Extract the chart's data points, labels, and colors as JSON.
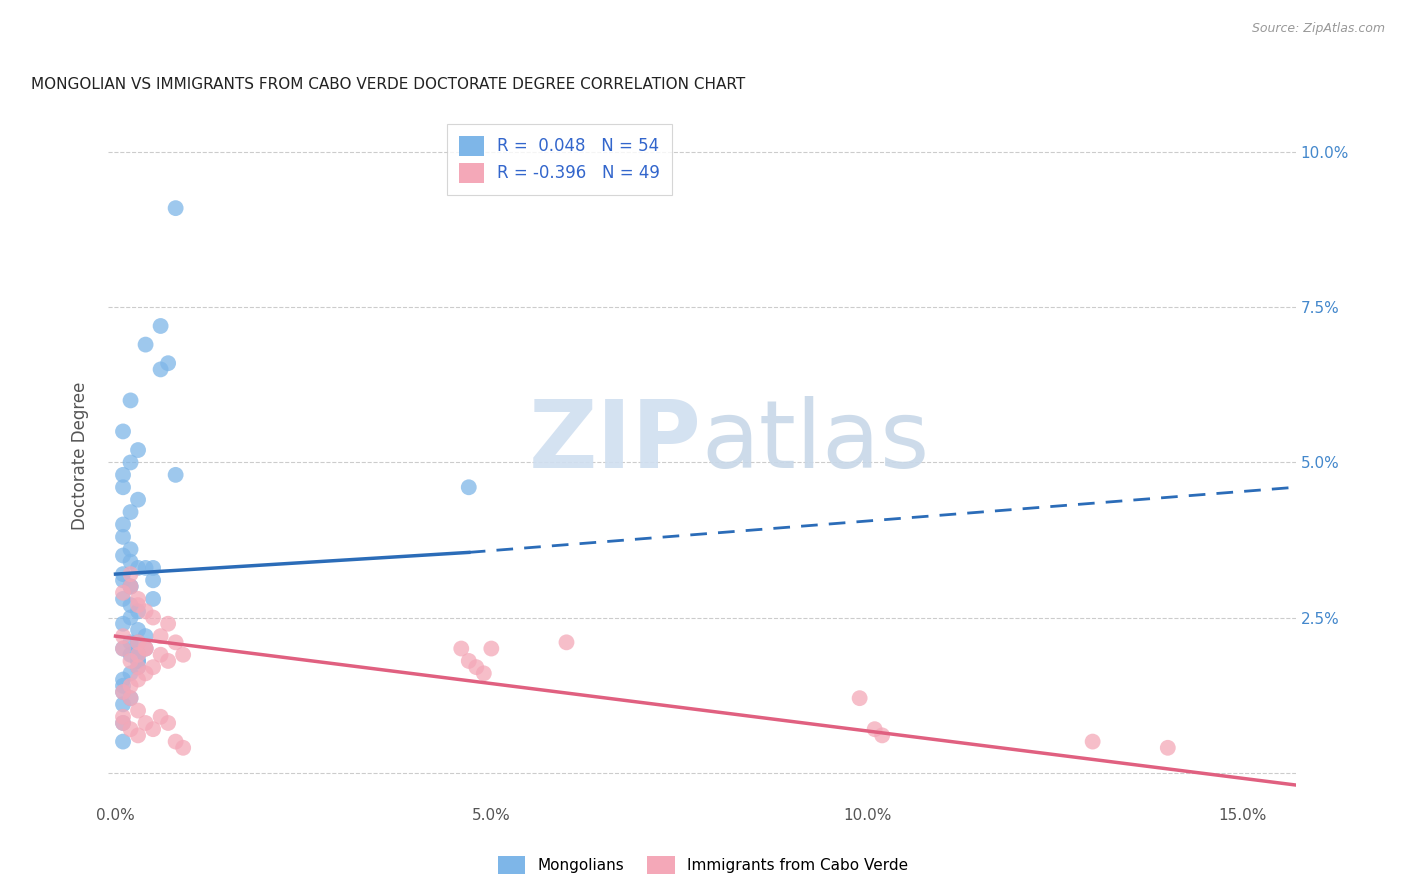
{
  "title": "MONGOLIAN VS IMMIGRANTS FROM CABO VERDE DOCTORATE DEGREE CORRELATION CHART",
  "source": "Source: ZipAtlas.com",
  "ylabel": "Doctorate Degree",
  "xmin": -0.001,
  "xmax": 0.157,
  "ymin": -0.005,
  "ymax": 0.107,
  "mongolian_R": 0.048,
  "mongolian_N": 54,
  "cabo_verde_R": -0.396,
  "cabo_verde_N": 49,
  "mongolian_color": "#7EB6E8",
  "cabo_verde_color": "#F4A8B8",
  "mongolian_line_color": "#2B6CB8",
  "cabo_verde_line_color": "#E06080",
  "watermark_zip": "ZIP",
  "watermark_atlas": "atlas",
  "xtick_vals": [
    0.0,
    0.05,
    0.1,
    0.15
  ],
  "xtick_labels": [
    "0.0%",
    "5.0%",
    "10.0%",
    "15.0%"
  ],
  "ytick_vals": [
    0.0,
    0.025,
    0.05,
    0.075,
    0.1
  ],
  "ytick_labels": [
    "",
    "2.5%",
    "5.0%",
    "7.5%",
    "10.0%"
  ],
  "mong_x": [
    0.001,
    0.008,
    0.006,
    0.001,
    0.001,
    0.003,
    0.002,
    0.001,
    0.004,
    0.002,
    0.001,
    0.002,
    0.001,
    0.003,
    0.002,
    0.004,
    0.005,
    0.002,
    0.003,
    0.001,
    0.002,
    0.002,
    0.001,
    0.003,
    0.004,
    0.006,
    0.007,
    0.008,
    0.002,
    0.003,
    0.003,
    0.004,
    0.005,
    0.001,
    0.002,
    0.003,
    0.047,
    0.005,
    0.003,
    0.003,
    0.001,
    0.001,
    0.002,
    0.001,
    0.001,
    0.003,
    0.002,
    0.001,
    0.001,
    0.002,
    0.001,
    0.002,
    0.003,
    0.001
  ],
  "mong_y": [
    0.035,
    0.091,
    0.072,
    0.048,
    0.046,
    0.044,
    0.042,
    0.04,
    0.069,
    0.06,
    0.055,
    0.05,
    0.038,
    0.052,
    0.034,
    0.033,
    0.031,
    0.03,
    0.033,
    0.028,
    0.027,
    0.025,
    0.024,
    0.023,
    0.022,
    0.065,
    0.066,
    0.048,
    0.019,
    0.018,
    0.021,
    0.02,
    0.033,
    0.031,
    0.021,
    0.019,
    0.046,
    0.028,
    0.019,
    0.018,
    0.015,
    0.013,
    0.012,
    0.011,
    0.008,
    0.017,
    0.016,
    0.005,
    0.032,
    0.03,
    0.02,
    0.036,
    0.026,
    0.014
  ],
  "cv_x": [
    0.001,
    0.002,
    0.003,
    0.004,
    0.005,
    0.002,
    0.003,
    0.001,
    0.001,
    0.002,
    0.003,
    0.004,
    0.006,
    0.007,
    0.008,
    0.009,
    0.003,
    0.002,
    0.001,
    0.004,
    0.005,
    0.003,
    0.006,
    0.007,
    0.002,
    0.003,
    0.001,
    0.001,
    0.002,
    0.003,
    0.004,
    0.005,
    0.008,
    0.009,
    0.004,
    0.003,
    0.006,
    0.007,
    0.046,
    0.047,
    0.048,
    0.049,
    0.05,
    0.06,
    0.099,
    0.101,
    0.102,
    0.13,
    0.14
  ],
  "cv_y": [
    0.022,
    0.032,
    0.028,
    0.026,
    0.025,
    0.03,
    0.027,
    0.029,
    0.02,
    0.018,
    0.017,
    0.016,
    0.022,
    0.024,
    0.021,
    0.019,
    0.015,
    0.014,
    0.013,
    0.02,
    0.017,
    0.021,
    0.019,
    0.018,
    0.012,
    0.01,
    0.009,
    0.008,
    0.007,
    0.006,
    0.008,
    0.007,
    0.005,
    0.004,
    0.02,
    0.019,
    0.009,
    0.008,
    0.02,
    0.018,
    0.017,
    0.016,
    0.02,
    0.021,
    0.012,
    0.007,
    0.006,
    0.005,
    0.004
  ],
  "mong_line_x0": 0.0,
  "mong_line_x_solid_end": 0.047,
  "mong_line_xmax": 0.157,
  "mong_line_y0": 0.032,
  "mong_line_y_solid_end": 0.0355,
  "mong_line_ymax": 0.046,
  "cv_line_x0": 0.0,
  "cv_line_xmax": 0.157,
  "cv_line_y0": 0.022,
  "cv_line_ymax": -0.002
}
